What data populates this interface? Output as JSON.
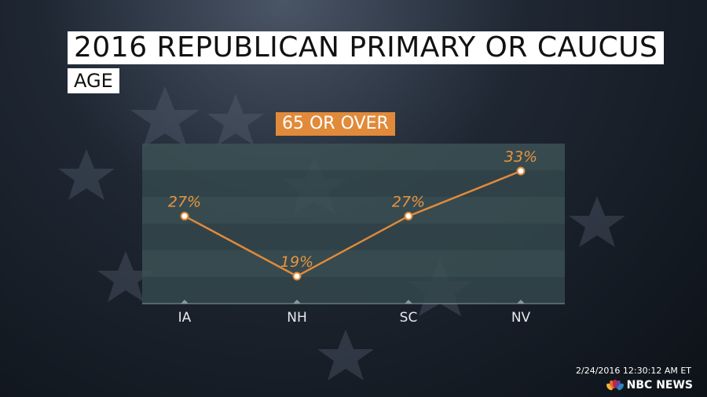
{
  "header": {
    "title": "2016 REPUBLICAN PRIMARY OR CAUCUS",
    "subtitle": "AGE"
  },
  "chart_data": {
    "type": "line",
    "title": "2016 REPUBLICAN PRIMARY OR CAUCUS",
    "subtitle": "AGE",
    "categories": [
      "IA",
      "NH",
      "SC",
      "NV"
    ],
    "series": [
      {
        "name": "65 OR OVER",
        "values": [
          27,
          19,
          27,
          33
        ],
        "labels": [
          "27%",
          "19%",
          "27%",
          "33%"
        ],
        "color": "#e08a3a"
      }
    ],
    "ylim": [
      15,
      35
    ],
    "grid": true,
    "legend": "top-center"
  },
  "footer": {
    "timestamp": "2/24/2016 12:30:12 AM ET",
    "brand": "NBC NEWS"
  },
  "colors": {
    "accent": "#e08a3a",
    "title_bg": "#ffffff",
    "panel": "#3a4e52"
  }
}
